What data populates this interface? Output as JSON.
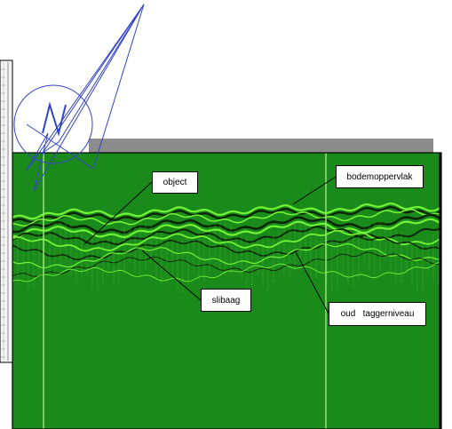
{
  "annotations": {
    "object": "object",
    "surface": "bodemoppervlak",
    "silt": "slibaag",
    "old_level": "oud   taggerniveau"
  },
  "colors": {
    "radargram_background": "#1a8a1a",
    "reflector_bright": "#7cff3a",
    "reflector_dark": "#0a1a06",
    "header_bar": "#8c8c8c",
    "north_arrow": "#3344cc"
  },
  "icons": {
    "north_arrow": "north-arrow-icon"
  }
}
